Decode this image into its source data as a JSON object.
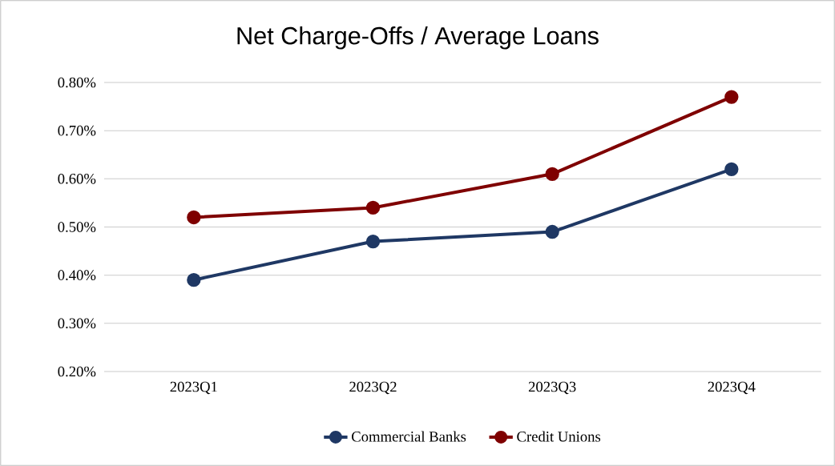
{
  "chart_data": {
    "type": "line",
    "title": "Net Charge-Offs / Average Loans",
    "categories": [
      "2023Q1",
      "2023Q2",
      "2023Q3",
      "2023Q4"
    ],
    "series": [
      {
        "name": "Commercial Banks",
        "color": "#1f3864",
        "values": [
          0.39,
          0.47,
          0.49,
          0.62
        ]
      },
      {
        "name": "Credit Unions",
        "color": "#7f0000",
        "values": [
          0.52,
          0.54,
          0.61,
          0.77
        ]
      }
    ],
    "ylim": [
      0.2,
      0.8
    ],
    "yticks": [
      {
        "value": 0.2,
        "label": "0.20%"
      },
      {
        "value": 0.3,
        "label": "0.30%"
      },
      {
        "value": 0.4,
        "label": "0.40%"
      },
      {
        "value": 0.5,
        "label": "0.50%"
      },
      {
        "value": 0.6,
        "label": "0.60%"
      },
      {
        "value": 0.7,
        "label": "0.70%"
      },
      {
        "value": 0.8,
        "label": "0.80%"
      }
    ],
    "grid": "y",
    "legend": "bottom",
    "marker": "circle",
    "line_style": "solid"
  }
}
